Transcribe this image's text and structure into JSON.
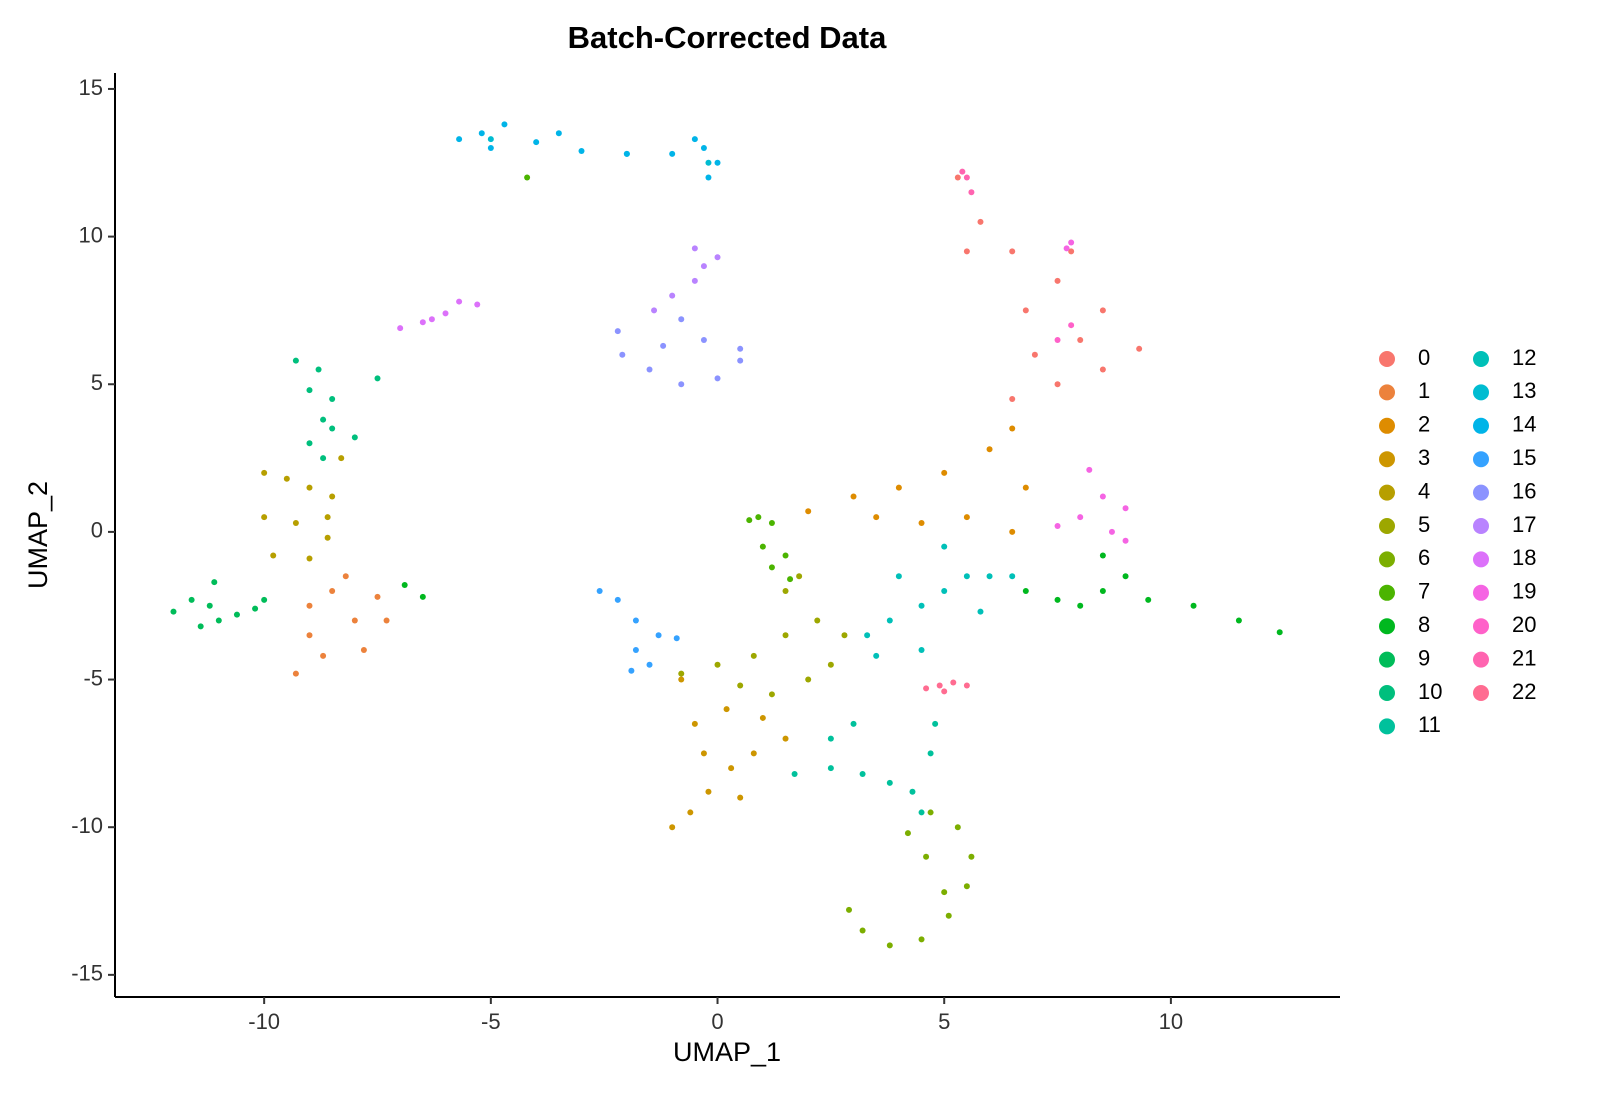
{
  "chart_data": {
    "type": "scatter",
    "title": "Batch-Corrected Data",
    "x_label": "UMAP_1",
    "y_label": "UMAP_2",
    "xlim": [
      -13.29,
      13.73
    ],
    "ylim": [
      -15.75,
      15.54
    ],
    "xticks": [
      -10,
      -5,
      0,
      5,
      10
    ],
    "yticks": [
      -15,
      -10,
      -5,
      0,
      5,
      10,
      15
    ],
    "series": [
      {
        "name": "0",
        "color": "#F8766D",
        "x": [
          5.3,
          5.8,
          6.5,
          7.5,
          8.5,
          9.3,
          8.0,
          7.0,
          6.5,
          7.5,
          8.5,
          6.8,
          5.5,
          7.8
        ],
        "y": [
          12.0,
          10.5,
          9.5,
          8.5,
          7.5,
          6.2,
          6.5,
          6.0,
          4.5,
          5.0,
          5.5,
          7.5,
          9.5,
          9.5
        ]
      },
      {
        "name": "1",
        "color": "#EC823C",
        "x": [
          -9.3,
          -9.0,
          -8.5,
          -8.0,
          -7.3,
          -7.8,
          -8.7,
          -9.0,
          -8.2,
          -7.5
        ],
        "y": [
          -4.8,
          -3.5,
          -2.0,
          -3.0,
          -3.0,
          -4.0,
          -4.2,
          -2.5,
          -1.5,
          -2.2
        ]
      },
      {
        "name": "2",
        "color": "#DE8C00",
        "x": [
          2.0,
          3.0,
          4.0,
          5.0,
          6.0,
          6.5,
          4.5,
          5.5,
          6.5,
          3.5,
          6.8
        ],
        "y": [
          0.7,
          1.2,
          1.5,
          2.0,
          2.8,
          3.5,
          0.3,
          0.5,
          0.0,
          0.5,
          1.5
        ]
      },
      {
        "name": "3",
        "color": "#CD9600",
        "x": [
          -1.0,
          -0.6,
          -0.2,
          0.3,
          0.8,
          1.5,
          -0.5,
          0.2,
          -0.8,
          1.0,
          -0.3,
          0.5
        ],
        "y": [
          -10.0,
          -9.5,
          -8.8,
          -8.0,
          -7.5,
          -7.0,
          -6.5,
          -6.0,
          -5.0,
          -6.3,
          -7.5,
          -9.0
        ]
      },
      {
        "name": "4",
        "color": "#B79F00",
        "x": [
          -10.0,
          -9.5,
          -9.0,
          -8.5,
          -10.0,
          -9.3,
          -8.6,
          -9.8,
          -9.0,
          -8.3,
          -8.6
        ],
        "y": [
          2.0,
          1.8,
          1.5,
          1.2,
          0.5,
          0.3,
          -0.2,
          -0.8,
          -0.9,
          2.5,
          0.5
        ]
      },
      {
        "name": "5",
        "color": "#9DA700",
        "x": [
          -0.8,
          0.0,
          0.8,
          1.5,
          1.5,
          2.2,
          2.8,
          2.5,
          1.2,
          0.5,
          1.8,
          2.0
        ],
        "y": [
          -4.8,
          -4.5,
          -4.2,
          -3.5,
          -2.0,
          -3.0,
          -3.5,
          -4.5,
          -5.5,
          -5.2,
          -1.5,
          -5.0
        ]
      },
      {
        "name": "6",
        "color": "#7CAE00",
        "x": [
          2.9,
          3.2,
          3.8,
          4.5,
          5.1,
          5.5,
          5.6,
          5.3,
          4.7,
          4.6,
          5.0,
          4.2
        ],
        "y": [
          -12.8,
          -13.5,
          -14.0,
          -13.8,
          -13.0,
          -12.0,
          -11.0,
          -10.0,
          -9.5,
          -11.0,
          -12.2,
          -10.2
        ]
      },
      {
        "name": "7",
        "color": "#4BB400",
        "x": [
          0.9,
          1.2,
          1.0,
          1.5,
          1.6,
          1.2,
          -4.2,
          0.7
        ],
        "y": [
          0.5,
          0.3,
          -0.5,
          -0.8,
          -1.6,
          -1.2,
          12.0,
          0.4
        ]
      },
      {
        "name": "8",
        "color": "#00B81F",
        "x": [
          6.8,
          7.5,
          8.5,
          8.5,
          9.0,
          9.5,
          10.5,
          11.5,
          12.4,
          8.0,
          -6.5,
          -6.9
        ],
        "y": [
          -2.0,
          -2.3,
          -2.0,
          -0.8,
          -1.5,
          -2.3,
          -2.5,
          -3.0,
          -3.4,
          -2.5,
          -2.2,
          -1.8
        ]
      },
      {
        "name": "9",
        "color": "#00BC59",
        "x": [
          -12.0,
          -11.6,
          -11.2,
          -11.0,
          -10.6,
          -10.2,
          -11.4,
          -11.1,
          -10.0
        ],
        "y": [
          -2.7,
          -2.3,
          -2.5,
          -3.0,
          -2.8,
          -2.6,
          -3.2,
          -1.7,
          -2.3
        ]
      },
      {
        "name": "10",
        "color": "#00BF7D",
        "x": [
          -9.3,
          -8.8,
          -9.0,
          -8.5,
          -7.5,
          -8.7,
          -9.0,
          -8.5,
          -8.0,
          -8.7
        ],
        "y": [
          5.8,
          5.5,
          4.8,
          4.5,
          5.2,
          3.8,
          3.0,
          3.5,
          3.2,
          2.5
        ]
      },
      {
        "name": "11",
        "color": "#00C19C",
        "x": [
          1.7,
          2.5,
          3.2,
          3.8,
          4.3,
          4.7,
          4.8,
          3.0,
          2.5,
          4.5
        ],
        "y": [
          -8.2,
          -8.0,
          -8.2,
          -8.5,
          -8.8,
          -7.5,
          -6.5,
          -6.5,
          -7.0,
          -9.5
        ]
      },
      {
        "name": "12",
        "color": "#00C0B8",
        "x": [
          3.3,
          3.8,
          4.5,
          5.0,
          5.5,
          6.0,
          4.0,
          5.0,
          3.5,
          4.5,
          5.8,
          6.5
        ],
        "y": [
          -3.5,
          -3.0,
          -2.5,
          -2.0,
          -1.5,
          -1.5,
          -1.5,
          -0.5,
          -4.2,
          -4.0,
          -2.7,
          -1.5
        ]
      },
      {
        "name": "13",
        "color": "#00BCD1",
        "x": [
          -5.0,
          -0.2,
          -2.0
        ],
        "y": [
          13.3,
          12.5,
          12.8
        ]
      },
      {
        "name": "14",
        "color": "#00B4E8",
        "x": [
          -5.7,
          -5.2,
          -4.7,
          -5.0,
          -4.0,
          -3.0,
          -2.0,
          -1.0,
          -0.3,
          0.0,
          -0.2,
          -0.5,
          -3.5
        ],
        "y": [
          13.3,
          13.5,
          13.8,
          13.0,
          13.2,
          12.9,
          12.8,
          12.8,
          13.0,
          12.5,
          12.0,
          13.3,
          13.5
        ]
      },
      {
        "name": "15",
        "color": "#35A2FF",
        "x": [
          -2.6,
          -2.2,
          -1.8,
          -1.3,
          -0.9,
          -1.8,
          -1.9,
          -1.5
        ],
        "y": [
          -2.0,
          -2.3,
          -3.0,
          -3.5,
          -3.6,
          -4.0,
          -4.7,
          -4.5
        ]
      },
      {
        "name": "16",
        "color": "#8B93FF",
        "x": [
          -2.2,
          -2.1,
          -1.5,
          -0.8,
          0.0,
          0.5,
          0.5,
          -0.3,
          -1.2,
          -0.8
        ],
        "y": [
          6.8,
          6.0,
          5.5,
          5.0,
          5.2,
          5.8,
          6.2,
          6.5,
          6.3,
          7.2
        ]
      },
      {
        "name": "17",
        "color": "#B983FF",
        "x": [
          -0.5,
          -0.3,
          -0.5,
          -1.0,
          -1.4,
          0.0
        ],
        "y": [
          9.6,
          9.0,
          8.5,
          8.0,
          7.5,
          9.3
        ]
      },
      {
        "name": "18",
        "color": "#DC71FA",
        "x": [
          -7.0,
          -6.5,
          -6.0,
          -5.7,
          -5.3,
          -6.3
        ],
        "y": [
          6.9,
          7.1,
          7.4,
          7.8,
          7.7,
          7.2
        ]
      },
      {
        "name": "19",
        "color": "#F564E3",
        "x": [
          7.5,
          8.0,
          8.5,
          8.2,
          9.0,
          9.0,
          8.7,
          7.8,
          7.7
        ],
        "y": [
          0.2,
          0.5,
          1.2,
          2.1,
          0.8,
          -0.3,
          0.0,
          9.8,
          9.6
        ]
      },
      {
        "name": "20",
        "color": "#FF61C9",
        "x": [
          7.5,
          7.8
        ],
        "y": [
          6.5,
          7.0
        ]
      },
      {
        "name": "21",
        "color": "#FF64B0",
        "x": [
          5.4,
          5.6,
          5.5
        ],
        "y": [
          12.2,
          11.5,
          12.0
        ]
      },
      {
        "name": "22",
        "color": "#FF6C91",
        "x": [
          4.6,
          4.9,
          5.2,
          5.5,
          5.0
        ],
        "y": [
          -5.3,
          -5.2,
          -5.1,
          -5.2,
          -5.4
        ]
      }
    ]
  }
}
